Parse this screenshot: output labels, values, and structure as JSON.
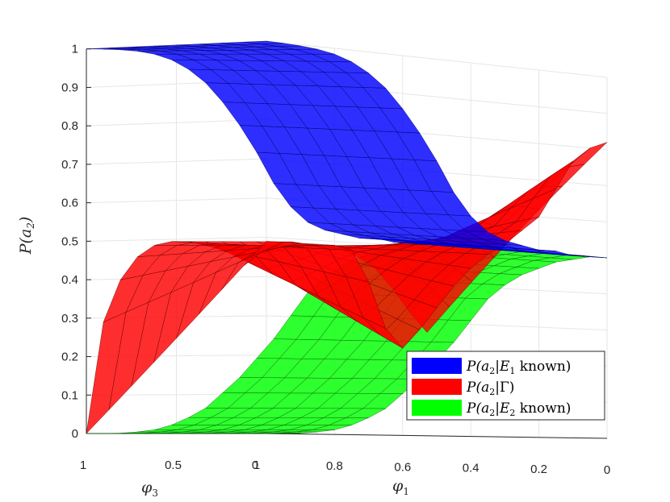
{
  "chart_data": {
    "type": "surface3d",
    "title": "",
    "zlabel": "P(a_2)",
    "xlabel": "φ_1",
    "ylabel": "φ_3",
    "zlim": [
      0,
      1
    ],
    "xlim": [
      0,
      1
    ],
    "ylim": [
      0,
      1
    ],
    "z_ticks": [
      "0",
      "0.1",
      "0.2",
      "0.3",
      "0.4",
      "0.5",
      "0.6",
      "0.7",
      "0.8",
      "0.9",
      "1"
    ],
    "phi1_ticks": [
      "1",
      "0.8",
      "0.6",
      "0.4",
      "0.2",
      "0"
    ],
    "phi3_ticks": [
      "1",
      "0.5",
      "0"
    ],
    "phi1_grid": [
      0,
      0.05,
      0.1,
      0.15,
      0.2,
      0.25,
      0.3,
      0.35,
      0.4,
      0.45,
      0.5,
      0.55,
      0.6,
      0.65,
      0.7,
      0.75,
      0.8,
      0.85,
      0.9,
      0.95,
      1
    ],
    "series": [
      {
        "name": "P(a_2|E_1 known)",
        "color": "#0000ff",
        "depends_on": "phi1",
        "values": [
          0.5,
          0.5,
          0.5,
          0.51,
          0.51,
          0.52,
          0.53,
          0.55,
          0.59,
          0.65,
          0.73,
          0.8,
          0.86,
          0.91,
          0.945,
          0.97,
          0.985,
          0.993,
          0.997,
          0.999,
          1.0
        ]
      },
      {
        "name": "P(a_2|Γ)",
        "color": "#ff0000",
        "depends_on": "phi1 and phi3",
        "phi3_zero_values": [
          0.82,
          0.8,
          0.76,
          0.68,
          0.6,
          0.56,
          0.52,
          0.49,
          0.45,
          0.4,
          0.34,
          0.28,
          0.23,
          0.28,
          0.4,
          0.48,
          0.49,
          0.49,
          0.49,
          0.49,
          0.49
        ],
        "phi3_one_values": [
          0.27,
          0.32,
          0.38,
          0.43,
          0.46,
          0.48,
          0.49,
          0.49,
          0.5,
          0.5,
          0.5,
          0.5,
          0.5,
          0.5,
          0.5,
          0.5,
          0.49,
          0.46,
          0.4,
          0.29,
          0.0
        ]
      },
      {
        "name": "P(a_2|E_2 known)",
        "color": "#00ff00",
        "depends_on": "phi1",
        "values": [
          0.5,
          0.5,
          0.49,
          0.48,
          0.46,
          0.44,
          0.41,
          0.37,
          0.31,
          0.25,
          0.2,
          0.15,
          0.11,
          0.07,
          0.045,
          0.025,
          0.012,
          0.006,
          0.002,
          0.001,
          0.0
        ]
      }
    ],
    "legend": {
      "location": "bottom-right",
      "entries": [
        {
          "prefix": "P(a",
          "sub": "2",
          "mid": "|",
          "cal": "E",
          "calsub": "1",
          "suffix": " known)",
          "color": "#0000ff"
        },
        {
          "prefix": "P(a",
          "sub": "2",
          "mid": "|Γ)",
          "cal": "",
          "calsub": "",
          "suffix": "",
          "color": "#ff0000"
        },
        {
          "prefix": "P(a",
          "sub": "2",
          "mid": "|",
          "cal": "E",
          "calsub": "2",
          "suffix": " known)",
          "color": "#00ff00"
        }
      ]
    },
    "grid": true
  }
}
